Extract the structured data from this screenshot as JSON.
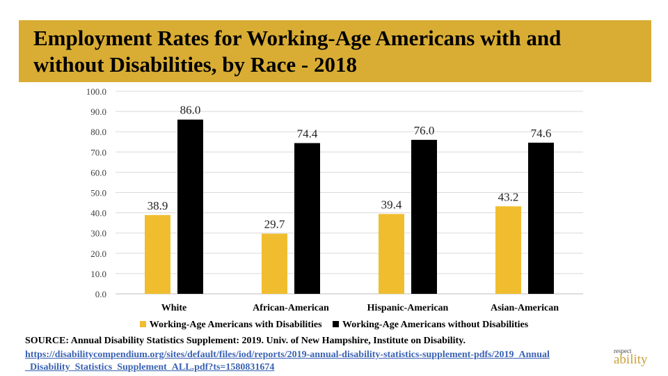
{
  "header": {
    "title": "Employment Rates for Working-Age Americans with and without Disabilities, by Race - 2018"
  },
  "chart_data": {
    "type": "bar",
    "categories": [
      "White",
      "African-American",
      "Hispanic-American",
      "Asian-American"
    ],
    "series": [
      {
        "name": "Working-Age Americans with Disabilities",
        "values": [
          38.9,
          29.7,
          39.4,
          43.2
        ],
        "color": "#f0bd2e"
      },
      {
        "name": "Working-Age Americans without Disabilities",
        "values": [
          86.0,
          74.4,
          76.0,
          74.6
        ],
        "color": "#000000"
      }
    ],
    "ylim": [
      0,
      100
    ],
    "yticks": [
      "0.0",
      "10.0",
      "20.0",
      "30.0",
      "40.0",
      "50.0",
      "60.0",
      "70.0",
      "80.0",
      "90.0",
      "100.0"
    ],
    "grid": true,
    "legend_position": "bottom"
  },
  "footer": {
    "source": "SOURCE: Annual Disability Statistics Supplement: 2019. Univ. of New Hampshire, Institute on Disability.",
    "link": "https://disabilitycompendium.org/sites/default/files/iod/reports/2019-annual-disability-statistics-supplement-pdfs/2019_Annual_Disability_Statistics_Supplement_ALL.pdf?ts=1580831674"
  },
  "logo": {
    "top": "respect",
    "bottom": "ability"
  }
}
